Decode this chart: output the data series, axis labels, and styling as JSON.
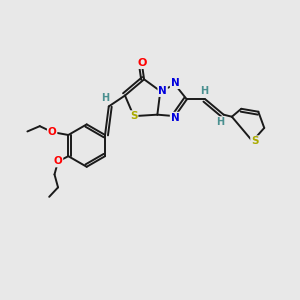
{
  "bg_color": "#e8e8e8",
  "bond_color": "#1a1a1a",
  "bond_width": 1.4,
  "atom_colors": {
    "O": "#ff0000",
    "N": "#0000dd",
    "S": "#aaaa00",
    "H": "#4a9090"
  },
  "font_size": 7.5,
  "fig_size": [
    3.0,
    3.0
  ],
  "dpi": 100
}
